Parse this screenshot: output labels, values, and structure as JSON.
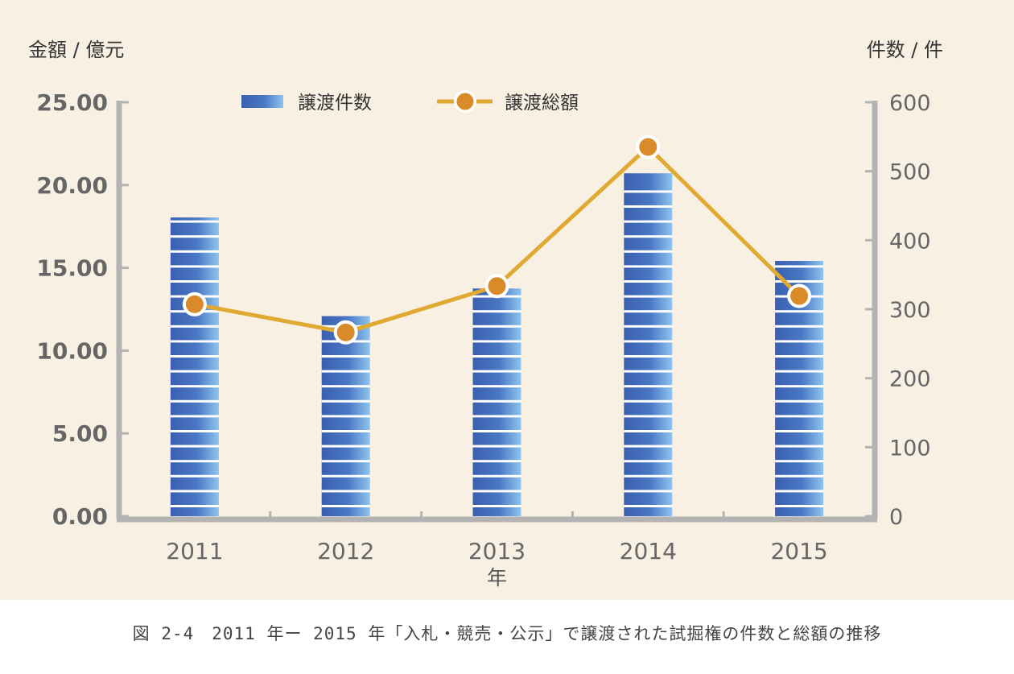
{
  "chart_data": {
    "type": "bar",
    "categories": [
      "2011",
      "2012",
      "2013",
      "2014",
      "2015"
    ],
    "xlabel": "年",
    "y_left": {
      "label": "金額 / 億元",
      "ticks": [
        "0.00",
        "5.00",
        "10.00",
        "15.00",
        "20.00",
        "25.00"
      ],
      "range": [
        0,
        25
      ]
    },
    "y_right": {
      "label": "件数 / 件",
      "ticks": [
        "0",
        "100",
        "200",
        "300",
        "400",
        "500",
        "600"
      ],
      "range": [
        0,
        600
      ]
    },
    "legend_position": "top-center",
    "series": [
      {
        "name": "譲渡件数",
        "type": "bar",
        "axis": "right",
        "values": [
          433,
          290,
          330,
          497,
          370
        ],
        "color": "#4a78c0"
      },
      {
        "name": "譲渡総額",
        "type": "line",
        "axis": "left",
        "values": [
          12.8,
          11.1,
          13.9,
          22.3,
          13.3
        ],
        "line_color": "#e0a932",
        "marker_color": "#d98b2a"
      }
    ]
  },
  "caption": "図 2-4　2011 年ー 2015 年「入札・競売・公示」で譲渡された試掘権の件数と総額の推移"
}
